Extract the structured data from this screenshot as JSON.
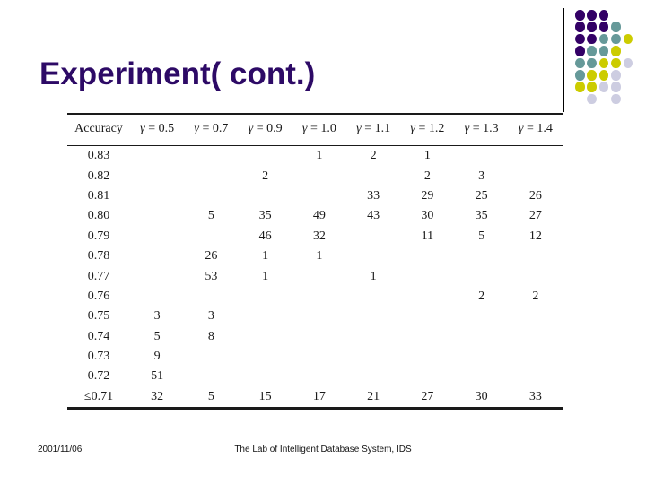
{
  "slide": {
    "title": "Experiment( cont.)",
    "title_color": "#2D0A66"
  },
  "table": {
    "columns": [
      "Accuracy",
      "γ = 0.5",
      "γ = 0.7",
      "γ = 0.9",
      "γ = 1.0",
      "γ = 1.1",
      "γ = 1.2",
      "γ = 1.3",
      "γ = 1.4"
    ],
    "rows": [
      {
        "label": "0.83",
        "values": [
          "",
          "",
          "",
          "1",
          "2",
          "1",
          "",
          ""
        ]
      },
      {
        "label": "0.82",
        "values": [
          "",
          "",
          "2",
          "",
          "",
          "2",
          "3",
          ""
        ]
      },
      {
        "label": "0.81",
        "values": [
          "",
          "",
          "",
          "",
          "33",
          "29",
          "25",
          "26"
        ]
      },
      {
        "label": "0.80",
        "values": [
          "",
          "5",
          "35",
          "49",
          "43",
          "30",
          "35",
          "27"
        ]
      },
      {
        "label": "0.79",
        "values": [
          "",
          "",
          "46",
          "32",
          "",
          "11",
          "5",
          "12"
        ]
      },
      {
        "label": "0.78",
        "values": [
          "",
          "26",
          "1",
          "1",
          "",
          "",
          "",
          ""
        ]
      },
      {
        "label": "0.77",
        "values": [
          "",
          "53",
          "1",
          "",
          "1",
          "",
          "",
          ""
        ]
      },
      {
        "label": "0.76",
        "values": [
          "",
          "",
          "",
          "",
          "",
          "",
          "2",
          "2"
        ]
      },
      {
        "label": "0.75",
        "values": [
          "3",
          "3",
          "",
          "",
          "",
          "",
          "",
          ""
        ]
      },
      {
        "label": "0.74",
        "values": [
          "5",
          "8",
          "",
          "",
          "",
          "",
          "",
          ""
        ]
      },
      {
        "label": "0.73",
        "values": [
          "9",
          "",
          "",
          "",
          "",
          "",
          "",
          ""
        ]
      },
      {
        "label": "0.72",
        "values": [
          "51",
          "",
          "",
          "",
          "",
          "",
          "",
          ""
        ]
      },
      {
        "label": "≤0.71",
        "values": [
          "32",
          "5",
          "15",
          "17",
          "21",
          "27",
          "30",
          "33"
        ]
      }
    ]
  },
  "footer": {
    "date": "2001/11/06",
    "credit": "The Lab of Intelligent Database System, IDS"
  },
  "decoration": {
    "colors": {
      "purple": "#330066",
      "teal": "#669999",
      "yellow": "#CCCC00",
      "lavender": "#CDCDE1"
    },
    "pattern": [
      [
        "purple",
        "purple",
        "purple"
      ],
      [
        "purple",
        "purple",
        "purple",
        "teal"
      ],
      [
        "purple",
        "purple",
        "teal",
        "teal",
        "yellow"
      ],
      [
        "purple",
        "teal",
        "teal",
        "yellow"
      ],
      [
        "teal",
        "teal",
        "yellow",
        "yellow",
        "lavender"
      ],
      [
        "teal",
        "yellow",
        "yellow",
        "lavender"
      ],
      [
        "yellow",
        "yellow",
        "lavender",
        "lavender"
      ],
      [
        null,
        "lavender",
        null,
        "lavender"
      ]
    ]
  }
}
